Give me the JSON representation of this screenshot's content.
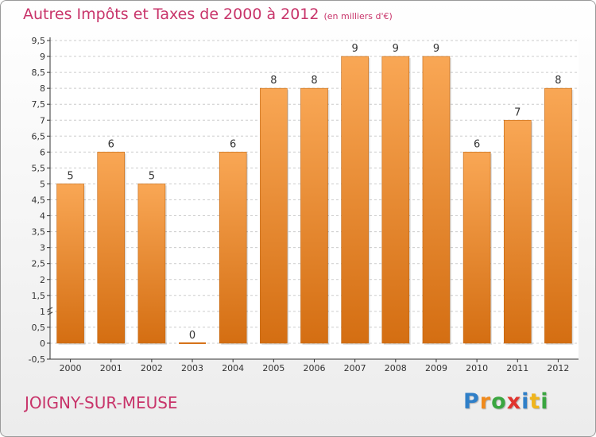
{
  "header": {
    "title": "Autres Impôts et Taxes de 2000 à 2012",
    "subtitle": "(en milliers d'€)"
  },
  "footer": {
    "commune": "JOIGNY-SUR-MEUSE",
    "brand": "Proxiti",
    "brand_letters": [
      {
        "char": "P",
        "color": "#2f7fc8"
      },
      {
        "char": "r",
        "color": "#f08a1c"
      },
      {
        "char": "o",
        "color": "#3aa640"
      },
      {
        "char": "x",
        "color": "#e0342e"
      },
      {
        "char": "i",
        "color": "#2f7fc8"
      },
      {
        "char": "t",
        "color": "#f0b51c"
      },
      {
        "char": "i",
        "color": "#3aa640"
      }
    ]
  },
  "chart_data": {
    "type": "bar",
    "title": "Autres Impôts et Taxes de 2000 à 2012",
    "subtitle": "(en milliers d'€)",
    "xlabel": "",
    "ylabel": "",
    "categories": [
      "2000",
      "2001",
      "2002",
      "2003",
      "2004",
      "2005",
      "2006",
      "2007",
      "2008",
      "2009",
      "2010",
      "2011",
      "2012"
    ],
    "values": [
      5,
      6,
      5,
      0,
      6,
      8,
      8,
      9,
      9,
      9,
      6,
      7,
      8
    ],
    "data_labels": [
      "5",
      "6",
      "5",
      "0",
      "6",
      "8",
      "8",
      "9",
      "9",
      "9",
      "6",
      "7",
      "8"
    ],
    "ylim": [
      -0.5,
      9.5
    ],
    "yticks": [
      -0.5,
      0,
      0.5,
      1,
      1.5,
      2,
      2.5,
      3,
      3.5,
      4,
      4.5,
      5,
      5.5,
      6,
      6.5,
      7,
      7.5,
      8,
      8.5,
      9,
      9.5
    ],
    "ytick_labels": [
      "-0,5",
      "0",
      "0,5",
      "1",
      "1,5",
      "2",
      "2,5",
      "3",
      "3,5",
      "4",
      "4,5",
      "5",
      "5,5",
      "6",
      "6,5",
      "7",
      "7,5",
      "8",
      "8,5",
      "9",
      "9,5"
    ],
    "grid": true,
    "legend": "none",
    "colors": {
      "bar_top": "#f9a755",
      "bar_bottom": "#d46e12",
      "bar_edge": "#c0640e",
      "grid": "#cccccc",
      "axis": "#333333",
      "text": "#333333",
      "title": "#c8346a"
    }
  }
}
